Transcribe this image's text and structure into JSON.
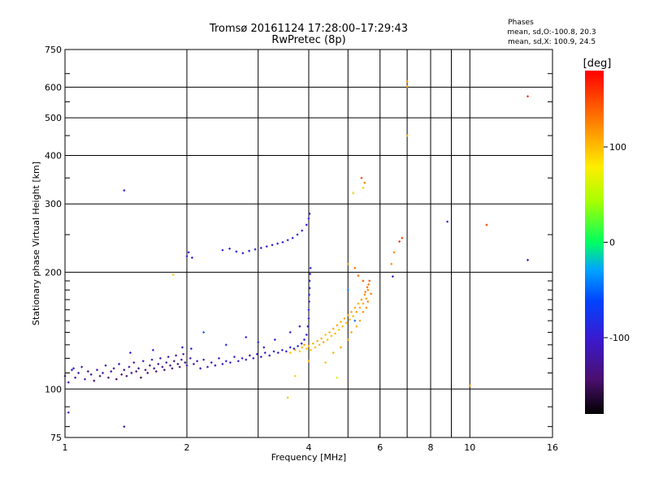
{
  "header": {
    "title": "Tromsø 20161124 17:28:00–17:29:43",
    "subtitle": "RwPretec (8p)",
    "stats_title": "Phases",
    "stats_o": "mean, sd,O:-100.8, 20.3",
    "stats_x": "mean, sd,X: 100.9, 24.5"
  },
  "colorbar": {
    "unit": "[deg]",
    "ticks": [
      {
        "value": 100,
        "label": "100"
      },
      {
        "value": 0,
        "label": "0"
      },
      {
        "value": -100,
        "label": "-100"
      }
    ],
    "range": [
      -180,
      180
    ]
  },
  "chart_data": {
    "type": "scatter",
    "xlabel": "Frequency [MHz]",
    "ylabel": "Stationary phase Virtual Height [km]",
    "xscale": "log",
    "yscale": "log",
    "xlim": [
      1,
      16
    ],
    "ylim": [
      75,
      750
    ],
    "x_ticks": [
      1,
      2,
      4,
      6,
      8,
      10,
      16
    ],
    "x_tick_labels": [
      "1",
      "2",
      "4",
      "6",
      "8",
      "10",
      "16"
    ],
    "x_minor": [
      3,
      5,
      7,
      9
    ],
    "y_ticks": [
      75,
      100,
      200,
      300,
      400,
      500,
      600,
      750
    ],
    "y_tick_labels": [
      "75",
      "100",
      "200",
      "300",
      "400",
      "500",
      "600",
      "750"
    ],
    "y_grid": [
      100,
      200,
      300,
      400,
      500,
      600
    ],
    "grid": true,
    "color_encoding": "phase [deg]",
    "series": [
      {
        "mode": "O",
        "points": [
          [
            1.0,
            108,
            -110
          ],
          [
            1.02,
            104,
            -120
          ],
          [
            1.04,
            112,
            -105
          ],
          [
            1.06,
            107,
            -130
          ],
          [
            1.08,
            110,
            -115
          ],
          [
            1.1,
            114,
            -125
          ],
          [
            1.12,
            106,
            -110
          ],
          [
            1.14,
            111,
            -140
          ],
          [
            1.16,
            109,
            -120
          ],
          [
            1.18,
            105,
            -135
          ],
          [
            1.2,
            112,
            -110
          ],
          [
            1.22,
            108,
            -145
          ],
          [
            1.24,
            110,
            -125
          ],
          [
            1.26,
            115,
            -110
          ],
          [
            1.28,
            107,
            -140
          ],
          [
            1.3,
            111,
            -130
          ],
          [
            1.32,
            113,
            -120
          ],
          [
            1.34,
            106,
            -150
          ],
          [
            1.36,
            116,
            -115
          ],
          [
            1.38,
            109,
            -140
          ],
          [
            1.4,
            112,
            -130
          ],
          [
            1.42,
            108,
            -145
          ],
          [
            1.44,
            114,
            -120
          ],
          [
            1.46,
            110,
            -135
          ],
          [
            1.48,
            117,
            -115
          ],
          [
            1.5,
            111,
            -140
          ],
          [
            1.52,
            113,
            -125
          ],
          [
            1.54,
            107,
            -150
          ],
          [
            1.56,
            118,
            -110
          ],
          [
            1.58,
            112,
            -135
          ],
          [
            1.6,
            110,
            -145
          ],
          [
            1.62,
            115,
            -120
          ],
          [
            1.64,
            119,
            -115
          ],
          [
            1.66,
            113,
            -130
          ],
          [
            1.68,
            111,
            -140
          ],
          [
            1.7,
            116,
            -125
          ],
          [
            1.72,
            120,
            -110
          ],
          [
            1.74,
            114,
            -130
          ],
          [
            1.76,
            112,
            -145
          ],
          [
            1.78,
            117,
            -120
          ],
          [
            1.8,
            121,
            -115
          ],
          [
            1.82,
            115,
            -135
          ],
          [
            1.84,
            113,
            -140
          ],
          [
            1.86,
            118,
            -125
          ],
          [
            1.88,
            122,
            -110
          ],
          [
            1.9,
            116,
            -130
          ],
          [
            1.92,
            114,
            -145
          ],
          [
            1.94,
            119,
            -120
          ],
          [
            1.96,
            123,
            -110
          ],
          [
            1.98,
            117,
            -125
          ],
          [
            2.0,
            115,
            -120
          ],
          [
            2.04,
            120,
            -110
          ],
          [
            2.08,
            116,
            -115
          ],
          [
            2.12,
            118,
            -108
          ],
          [
            2.16,
            113,
            -112
          ],
          [
            2.2,
            119,
            -105
          ],
          [
            2.25,
            114,
            -110
          ],
          [
            2.3,
            117,
            -104
          ],
          [
            2.35,
            115,
            -108
          ],
          [
            2.4,
            120,
            -102
          ],
          [
            2.45,
            116,
            -106
          ],
          [
            2.5,
            118,
            -100
          ],
          [
            2.56,
            117,
            -104
          ],
          [
            2.62,
            121,
            -100
          ],
          [
            2.68,
            118,
            -103
          ],
          [
            2.74,
            120,
            -99
          ],
          [
            2.8,
            119,
            -102
          ],
          [
            2.86,
            122,
            -98
          ],
          [
            2.92,
            120,
            -101
          ],
          [
            2.98,
            123,
            -97
          ],
          [
            3.05,
            121,
            -100
          ],
          [
            3.12,
            124,
            -96
          ],
          [
            3.2,
            122,
            -99
          ],
          [
            3.28,
            125,
            -95
          ],
          [
            3.36,
            124,
            -98
          ],
          [
            3.44,
            126,
            -96
          ],
          [
            3.52,
            125,
            -97
          ],
          [
            3.6,
            128,
            -94
          ],
          [
            3.68,
            127,
            -96
          ],
          [
            3.76,
            129,
            -93
          ],
          [
            3.84,
            131,
            -95
          ],
          [
            3.9,
            134,
            -92
          ],
          [
            3.95,
            138,
            -94
          ],
          [
            3.98,
            145,
            -92
          ],
          [
            4.0,
            152,
            -95
          ],
          [
            4.0,
            160,
            -90
          ],
          [
            4.01,
            168,
            -93
          ],
          [
            4.01,
            175,
            -90
          ],
          [
            4.02,
            182,
            -92
          ],
          [
            4.02,
            190,
            -88
          ],
          [
            4.03,
            198,
            -91
          ],
          [
            4.04,
            205,
            -89
          ],
          [
            1.05,
            113,
            -90
          ],
          [
            1.45,
            124,
            -95
          ],
          [
            1.65,
            126,
            -90
          ],
          [
            1.95,
            128,
            -95
          ],
          [
            2.05,
            127,
            -92
          ],
          [
            2.5,
            130,
            -88
          ],
          [
            2.8,
            136,
            -92
          ],
          [
            3.0,
            132,
            -90
          ],
          [
            3.3,
            134,
            -92
          ],
          [
            3.6,
            140,
            -95
          ],
          [
            3.8,
            145,
            -90
          ],
          [
            3.1,
            128,
            -92
          ],
          [
            2.2,
            140,
            -55
          ],
          [
            2.0,
            220,
            -95
          ],
          [
            2.02,
            225,
            -100
          ],
          [
            2.06,
            218,
            -98
          ],
          [
            2.45,
            228,
            -92
          ],
          [
            2.55,
            230,
            -95
          ],
          [
            2.65,
            226,
            -90
          ],
          [
            2.75,
            224,
            -96
          ],
          [
            2.85,
            227,
            -93
          ],
          [
            2.95,
            229,
            -95
          ],
          [
            3.05,
            231,
            -92
          ],
          [
            3.15,
            233,
            -96
          ],
          [
            3.25,
            235,
            -93
          ],
          [
            3.35,
            237,
            -95
          ],
          [
            3.45,
            239,
            -92
          ],
          [
            3.55,
            242,
            -96
          ],
          [
            3.65,
            245,
            -93
          ],
          [
            3.75,
            250,
            -95
          ],
          [
            3.85,
            256,
            -92
          ],
          [
            3.95,
            265,
            -96
          ],
          [
            4.0,
            275,
            -93
          ],
          [
            4.02,
            283,
            -95
          ],
          [
            1.02,
            87,
            -110
          ],
          [
            1.4,
            80,
            -118
          ],
          [
            1.4,
            325,
            -95
          ],
          [
            5.0,
            180,
            -40
          ],
          [
            5.15,
            320,
            -85
          ],
          [
            6.45,
            195,
            -105
          ],
          [
            8.8,
            270,
            -95
          ],
          [
            13.9,
            215,
            -100
          ],
          [
            5.2,
            150,
            -45
          ]
        ]
      },
      {
        "mode": "X",
        "points": [
          [
            3.6,
            124,
            100
          ],
          [
            3.7,
            126,
            105
          ],
          [
            3.8,
            125,
            98
          ],
          [
            3.85,
            128,
            102
          ],
          [
            3.9,
            130,
            110
          ],
          [
            3.95,
            127,
            95
          ],
          [
            4.0,
            129,
            104
          ],
          [
            4.05,
            126,
            96
          ],
          [
            4.1,
            131,
            106
          ],
          [
            4.15,
            128,
            100
          ],
          [
            4.2,
            133,
            108
          ],
          [
            4.25,
            130,
            99
          ],
          [
            4.3,
            135,
            104
          ],
          [
            4.35,
            132,
            110
          ],
          [
            4.4,
            138,
            102
          ],
          [
            4.45,
            134,
            97
          ],
          [
            4.5,
            140,
            106
          ],
          [
            4.55,
            137,
            100
          ],
          [
            4.6,
            143,
            108
          ],
          [
            4.65,
            139,
            103
          ],
          [
            4.7,
            146,
            110
          ],
          [
            4.75,
            142,
            98
          ],
          [
            4.8,
            149,
            105
          ],
          [
            4.85,
            145,
            101
          ],
          [
            4.9,
            152,
            108
          ],
          [
            4.95,
            148,
            100
          ],
          [
            5.0,
            155,
            110
          ],
          [
            5.05,
            151,
            104
          ],
          [
            5.1,
            158,
            112
          ],
          [
            5.15,
            154,
            102
          ],
          [
            5.2,
            162,
            108
          ],
          [
            5.25,
            158,
            115
          ],
          [
            5.3,
            166,
            105
          ],
          [
            5.35,
            162,
            110
          ],
          [
            5.4,
            170,
            118
          ],
          [
            5.45,
            166,
            108
          ],
          [
            5.5,
            175,
            120
          ],
          [
            5.55,
            171,
            112
          ],
          [
            5.6,
            180,
            125
          ],
          [
            5.62,
            186,
            130
          ],
          [
            5.65,
            190,
            140
          ],
          [
            5.58,
            183,
            135
          ],
          [
            5.52,
            178,
            128
          ],
          [
            5.45,
            190,
            140
          ],
          [
            5.3,
            196,
            135
          ],
          [
            5.2,
            205,
            130
          ],
          [
            4.0,
            118,
            105
          ],
          [
            3.7,
            108,
            92
          ],
          [
            1.85,
            197,
            92
          ],
          [
            3.55,
            95,
            98
          ],
          [
            4.4,
            117,
            96
          ],
          [
            4.6,
            124,
            103
          ],
          [
            4.8,
            128,
            108
          ],
          [
            5.0,
            134,
            112
          ],
          [
            5.1,
            140,
            110
          ],
          [
            5.25,
            145,
            105
          ],
          [
            5.35,
            150,
            112
          ],
          [
            5.45,
            158,
            118
          ],
          [
            5.6,
            168,
            124
          ],
          [
            5.7,
            176,
            128
          ],
          [
            5.55,
            162,
            120
          ],
          [
            5.0,
            210,
            112
          ],
          [
            5.15,
            320,
            80
          ],
          [
            5.4,
            350,
            150
          ],
          [
            5.5,
            340,
            125
          ],
          [
            5.45,
            330,
            95
          ],
          [
            6.4,
            210,
            118
          ],
          [
            6.5,
            225,
            125
          ],
          [
            6.7,
            240,
            160
          ],
          [
            6.8,
            245,
            150
          ],
          [
            7.0,
            620,
            118
          ],
          [
            7.0,
            602,
            110
          ],
          [
            7.0,
            450,
            108
          ],
          [
            11.0,
            265,
            150
          ],
          [
            13.9,
            568,
            160
          ],
          [
            10.0,
            102,
            112
          ],
          [
            4.7,
            107,
            60
          ]
        ]
      }
    ]
  }
}
